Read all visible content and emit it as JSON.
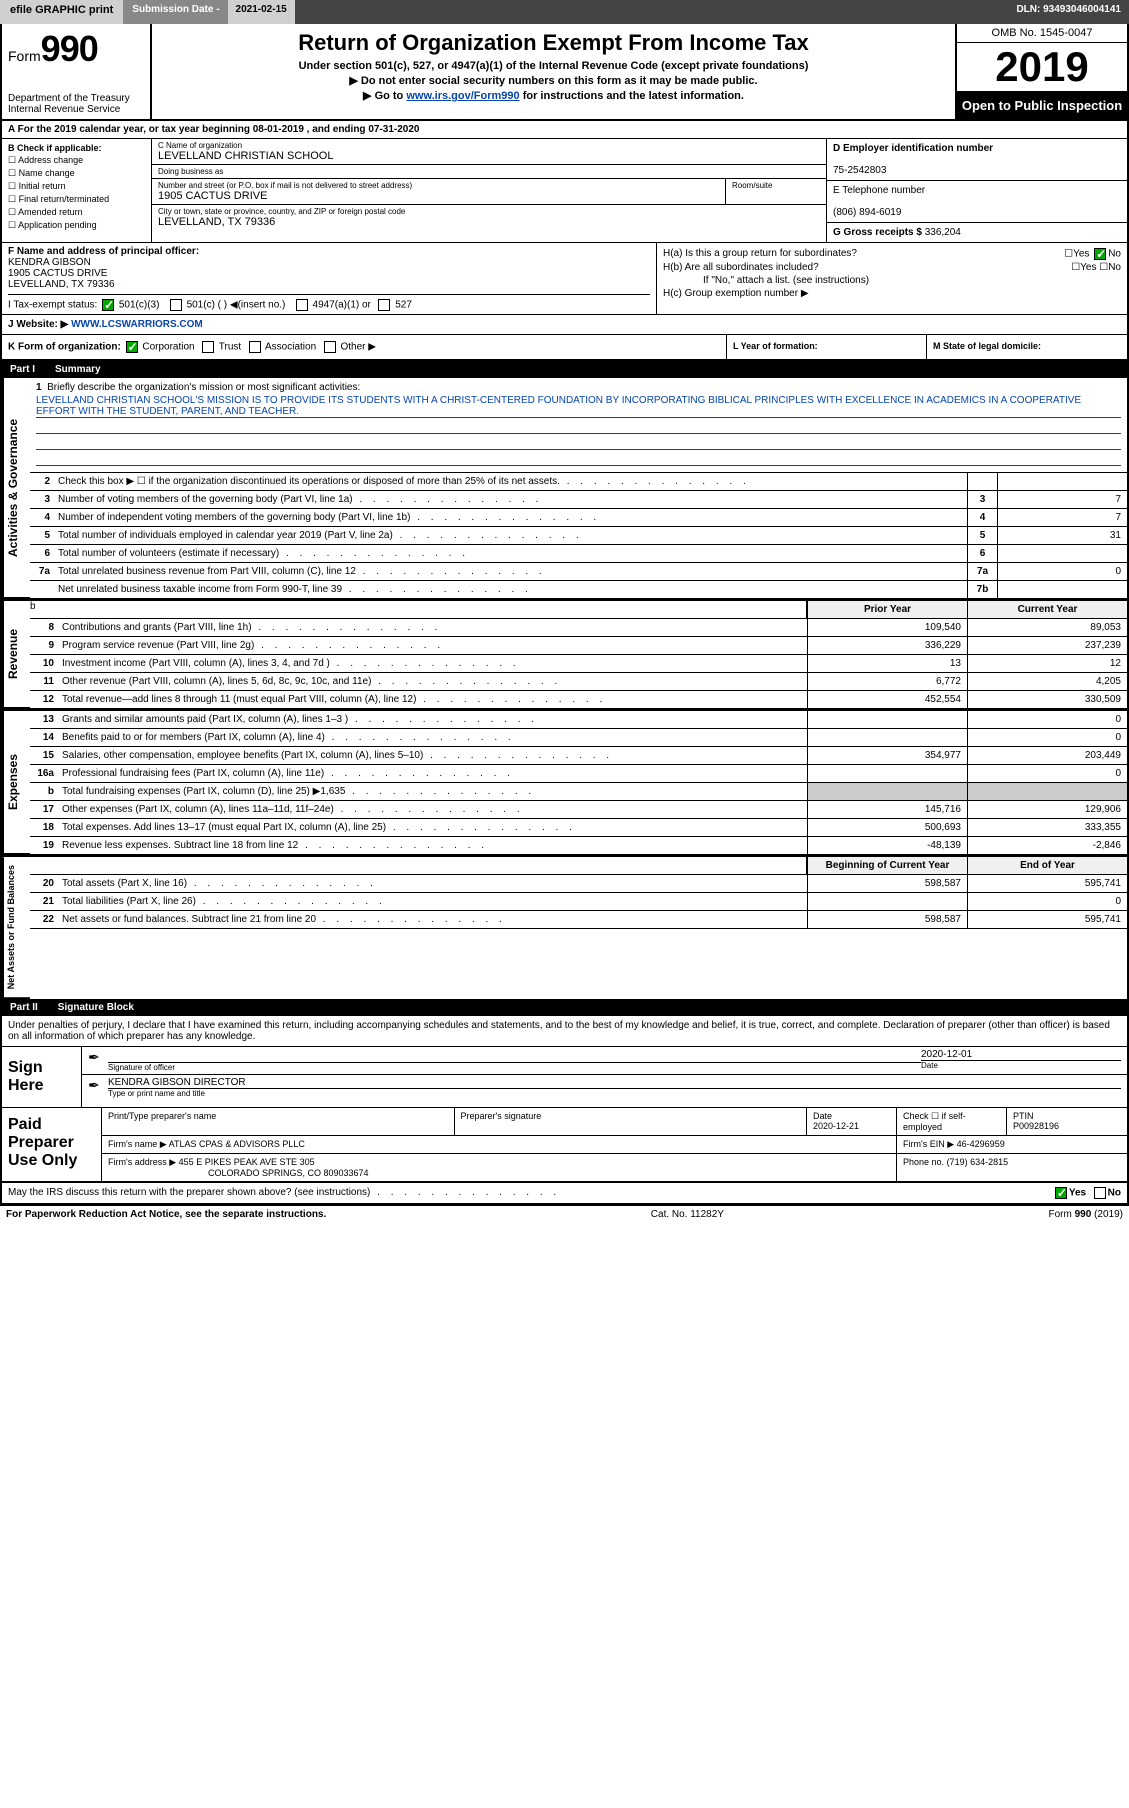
{
  "topbar": {
    "efile_btn": "efile GRAPHIC print",
    "submission_label": "Submission Date - ",
    "submission_date": "2021-02-15",
    "dln_label": "DLN: ",
    "dln": "93493046004141"
  },
  "header": {
    "form_label": "Form",
    "form_number": "990",
    "dept": "Department of the Treasury\nInternal Revenue Service",
    "title": "Return of Organization Exempt From Income Tax",
    "subtitle": "Under section 501(c), 527, or 4947(a)(1) of the Internal Revenue Code (except private foundations)",
    "note1": "Do not enter social security numbers on this form as it may be made public.",
    "note2_pre": "Go to ",
    "note2_link": "www.irs.gov/Form990",
    "note2_post": " for instructions and the latest information.",
    "omb": "OMB No. 1545-0047",
    "year": "2019",
    "open_public": "Open to Public Inspection"
  },
  "line_a": "A For the 2019 calendar year, or tax year beginning 08-01-2019   , and ending 07-31-2020",
  "section_b": {
    "label": "B Check if applicable:",
    "items": [
      "Address change",
      "Name change",
      "Initial return",
      "Final return/terminated",
      "Amended return",
      "Application pending"
    ]
  },
  "section_c": {
    "name_label": "C Name of organization",
    "name": "LEVELLAND CHRISTIAN SCHOOL",
    "dba_label": "Doing business as",
    "dba": "",
    "addr_label": "Number and street (or P.O. box if mail is not delivered to street address)",
    "addr": "1905 CACTUS DRIVE",
    "room_label": "Room/suite",
    "city_label": "City or town, state or province, country, and ZIP or foreign postal code",
    "city": "LEVELLAND, TX  79336"
  },
  "section_d": {
    "label": "D Employer identification number",
    "ein": "75-2542803"
  },
  "section_e": {
    "label": "E Telephone number",
    "phone": "(806) 894-6019"
  },
  "section_g": {
    "label": "G Gross receipts $ ",
    "amount": "336,204"
  },
  "section_f": {
    "label": "F  Name and address of principal officer:",
    "name": "KENDRA GIBSON",
    "addr1": "1905 CACTUS DRIVE",
    "addr2": "LEVELLAND, TX  79336"
  },
  "section_h": {
    "ha": "H(a)  Is this a group return for subordinates?",
    "ha_ans": "No",
    "hb": "H(b)  Are all subordinates included?",
    "hb_note": "If \"No,\" attach a list. (see instructions)",
    "hc": "H(c)  Group exemption number ▶"
  },
  "section_i": {
    "label": "I  Tax-exempt status:",
    "opt1": "501(c)(3)",
    "opt2": "501(c) (  ) ◀(insert no.)",
    "opt3": "4947(a)(1) or",
    "opt4": "527"
  },
  "section_j": {
    "label": "J  Website: ▶",
    "url": "WWW.LCSWARRIORS.COM"
  },
  "section_k": {
    "label": "K Form of organization:",
    "opts": [
      "Corporation",
      "Trust",
      "Association",
      "Other ▶"
    ]
  },
  "section_l": {
    "label": "L Year of formation:"
  },
  "section_m": {
    "label": "M State of legal domicile:"
  },
  "part1": {
    "header_num": "Part I",
    "header_title": "Summary"
  },
  "mission": {
    "num": "1",
    "label": "Briefly describe the organization's mission or most significant activities:",
    "text": "LEVELLAND CHRISTIAN SCHOOL'S MISSION IS TO PROVIDE ITS STUDENTS WITH A CHRIST-CENTERED FOUNDATION BY INCORPORATING BIBLICAL PRINCIPLES WITH EXCELLENCE IN ACADEMICS IN A COOPERATIVE EFFORT WITH THE STUDENT, PARENT, AND TEACHER."
  },
  "gov_lines": [
    {
      "n": "2",
      "d": "Check this box ▶ ☐  if the organization discontinued its operations or disposed of more than 25% of its net assets.",
      "box": "",
      "v": ""
    },
    {
      "n": "3",
      "d": "Number of voting members of the governing body (Part VI, line 1a)",
      "box": "3",
      "v": "7"
    },
    {
      "n": "4",
      "d": "Number of independent voting members of the governing body (Part VI, line 1b)",
      "box": "4",
      "v": "7"
    },
    {
      "n": "5",
      "d": "Total number of individuals employed in calendar year 2019 (Part V, line 2a)",
      "box": "5",
      "v": "31"
    },
    {
      "n": "6",
      "d": "Total number of volunteers (estimate if necessary)",
      "box": "6",
      "v": ""
    },
    {
      "n": "7a",
      "d": "Total unrelated business revenue from Part VIII, column (C), line 12",
      "box": "7a",
      "v": "0"
    },
    {
      "n": "",
      "d": "Net unrelated business taxable income from Form 990-T, line 39",
      "box": "7b",
      "v": ""
    }
  ],
  "col_headers": {
    "py": "Prior Year",
    "cy": "Current Year"
  },
  "revenue_lines": [
    {
      "n": "8",
      "d": "Contributions and grants (Part VIII, line 1h)",
      "py": "109,540",
      "cy": "89,053"
    },
    {
      "n": "9",
      "d": "Program service revenue (Part VIII, line 2g)",
      "py": "336,229",
      "cy": "237,239"
    },
    {
      "n": "10",
      "d": "Investment income (Part VIII, column (A), lines 3, 4, and 7d )",
      "py": "13",
      "cy": "12"
    },
    {
      "n": "11",
      "d": "Other revenue (Part VIII, column (A), lines 5, 6d, 8c, 9c, 10c, and 11e)",
      "py": "6,772",
      "cy": "4,205"
    },
    {
      "n": "12",
      "d": "Total revenue—add lines 8 through 11 (must equal Part VIII, column (A), line 12)",
      "py": "452,554",
      "cy": "330,509"
    }
  ],
  "expense_lines": [
    {
      "n": "13",
      "d": "Grants and similar amounts paid (Part IX, column (A), lines 1–3 )",
      "py": "",
      "cy": "0"
    },
    {
      "n": "14",
      "d": "Benefits paid to or for members (Part IX, column (A), line 4)",
      "py": "",
      "cy": "0"
    },
    {
      "n": "15",
      "d": "Salaries, other compensation, employee benefits (Part IX, column (A), lines 5–10)",
      "py": "354,977",
      "cy": "203,449"
    },
    {
      "n": "16a",
      "d": "Professional fundraising fees (Part IX, column (A), line 11e)",
      "py": "",
      "cy": "0"
    },
    {
      "n": "b",
      "d": "Total fundraising expenses (Part IX, column (D), line 25) ▶1,635",
      "py": "shaded",
      "cy": "shaded"
    },
    {
      "n": "17",
      "d": "Other expenses (Part IX, column (A), lines 11a–11d, 11f–24e)",
      "py": "145,716",
      "cy": "129,906"
    },
    {
      "n": "18",
      "d": "Total expenses. Add lines 13–17 (must equal Part IX, column (A), line 25)",
      "py": "500,693",
      "cy": "333,355"
    },
    {
      "n": "19",
      "d": "Revenue less expenses. Subtract line 18 from line 12",
      "py": "-48,139",
      "cy": "-2,846"
    }
  ],
  "net_headers": {
    "py": "Beginning of Current Year",
    "cy": "End of Year"
  },
  "net_lines": [
    {
      "n": "20",
      "d": "Total assets (Part X, line 16)",
      "py": "598,587",
      "cy": "595,741"
    },
    {
      "n": "21",
      "d": "Total liabilities (Part X, line 26)",
      "py": "",
      "cy": "0"
    },
    {
      "n": "22",
      "d": "Net assets or fund balances. Subtract line 21 from line 20",
      "py": "598,587",
      "cy": "595,741"
    }
  ],
  "vtabs": {
    "gov": "Activities & Governance",
    "rev": "Revenue",
    "exp": "Expenses",
    "net": "Net Assets or Fund Balances"
  },
  "part2": {
    "header_num": "Part II",
    "header_title": "Signature Block"
  },
  "penalty": "Under penalties of perjury, I declare that I have examined this return, including accompanying schedules and statements, and to the best of my knowledge and belief, it is true, correct, and complete. Declaration of preparer (other than officer) is based on all information of which preparer has any knowledge.",
  "sign": {
    "label": "Sign Here",
    "sig_label": "Signature of officer",
    "date_label": "Date",
    "date": "2020-12-01",
    "name": "KENDRA GIBSON  DIRECTOR",
    "name_label": "Type or print name and title"
  },
  "prep": {
    "label": "Paid Preparer Use Only",
    "print_label": "Print/Type preparer's name",
    "sig_label": "Preparer's signature",
    "date_label": "Date",
    "date": "2020-12-21",
    "check_label": "Check ☐ if self-employed",
    "ptin_label": "PTIN",
    "ptin": "P00928196",
    "firm_name_label": "Firm's name   ▶",
    "firm_name": "ATLAS CPAS & ADVISORS PLLC",
    "firm_ein_label": "Firm's EIN ▶",
    "firm_ein": "46-4296959",
    "firm_addr_label": "Firm's address ▶",
    "firm_addr1": "455 E PIKES PEAK AVE STE 305",
    "firm_addr2": "COLORADO SPRINGS, CO  809033674",
    "phone_label": "Phone no.",
    "phone": "(719) 634-2815"
  },
  "discuss": {
    "q": "May the IRS discuss this return with the preparer shown above? (see instructions)",
    "yes": "Yes",
    "no": "No"
  },
  "footer": {
    "left": "For Paperwork Reduction Act Notice, see the separate instructions.",
    "mid": "Cat. No. 11282Y",
    "right": "Form 990 (2019)"
  }
}
